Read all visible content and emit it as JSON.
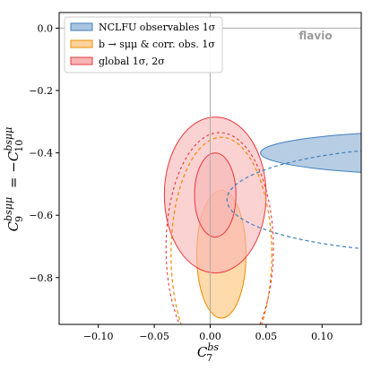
{
  "chart_data": {
    "type": "contour",
    "watermark": "flavio",
    "xlabel": "C_7^{bs}",
    "ylabel": "C_9^{bsμμ} = −C_10^{bsμμ}",
    "xlim": [
      -0.135,
      0.135
    ],
    "ylim": [
      -0.95,
      0.05
    ],
    "x_ticks": [
      -0.1,
      -0.05,
      0.0,
      0.05,
      0.1
    ],
    "x_tick_labels": [
      "−0.10",
      "−0.05",
      "0.00",
      "0.05",
      "0.10"
    ],
    "y_ticks": [
      0.0,
      -0.2,
      -0.4,
      -0.6,
      -0.8
    ],
    "y_tick_labels": [
      "0.0",
      "−0.2",
      "−0.4",
      "−0.6",
      "−0.8"
    ],
    "reference_lines": {
      "x": 0.0,
      "y": 0.0
    },
    "legend_position": "top-left",
    "series": [
      {
        "name": "NCLFU observables 1σ",
        "color": "#3f7fbf",
        "fill": "#a9c4de",
        "contours": [
          {
            "level": "1σ",
            "center": [
              0.21,
              -0.4
            ],
            "semi_axes": [
              0.165,
              0.07
            ],
            "style": "solid filled"
          },
          {
            "level": "2σ",
            "center": [
              0.21,
              -0.55
            ],
            "semi_axes": [
              0.195,
              0.17
            ],
            "style": "dashed"
          }
        ]
      },
      {
        "name": "b → sμμ & corr. obs. 1σ",
        "color": "#f08c00",
        "fill": "#ffd39b",
        "contours": [
          {
            "level": "1σ",
            "center": [
              0.01,
              -0.725
            ],
            "semi_axes": [
              0.022,
              0.205
            ],
            "style": "solid filled"
          },
          {
            "level": "2σ",
            "center": [
              0.01,
              -0.725
            ],
            "semi_axes": [
              0.045,
              0.375
            ],
            "style": "dashed"
          }
        ]
      },
      {
        "name": "global 1σ, 2σ",
        "color": "#e8383d",
        "fill": "#f8b4b4",
        "contours": [
          {
            "level": "1σ",
            "center": [
              0.0045,
              -0.535
            ],
            "semi_axes": [
              0.0185,
              0.135
            ],
            "style": "solid filled"
          },
          {
            "level": "2σ",
            "center": [
              0.0045,
              -0.535
            ],
            "semi_axes": [
              0.0455,
              0.25
            ],
            "style": "solid filled"
          }
        ]
      }
    ]
  }
}
